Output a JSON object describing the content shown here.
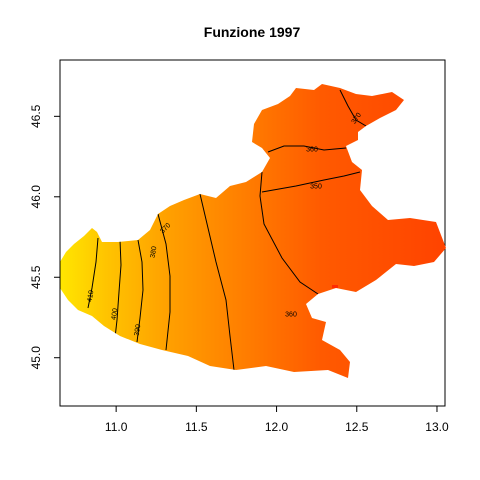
{
  "chart_data": {
    "type": "heatmap",
    "title": "Funzione 1997",
    "xlabel": "",
    "ylabel": "",
    "xlim": [
      10.65,
      13.05
    ],
    "ylim": [
      44.7,
      46.85
    ],
    "x_ticks": [
      "11.0",
      "11.5",
      "12.0",
      "12.5",
      "13.0"
    ],
    "y_ticks": [
      "45.0",
      "45.5",
      "46.0",
      "46.5"
    ],
    "contour_levels": [
      "410",
      "400",
      "390",
      "380",
      "370",
      "360",
      "350",
      "360",
      "370"
    ],
    "colors": {
      "low": "#ff4800",
      "mid": "#ff8a00",
      "high": "#ffe000",
      "contour": "#000000",
      "frame": "#000000"
    }
  }
}
